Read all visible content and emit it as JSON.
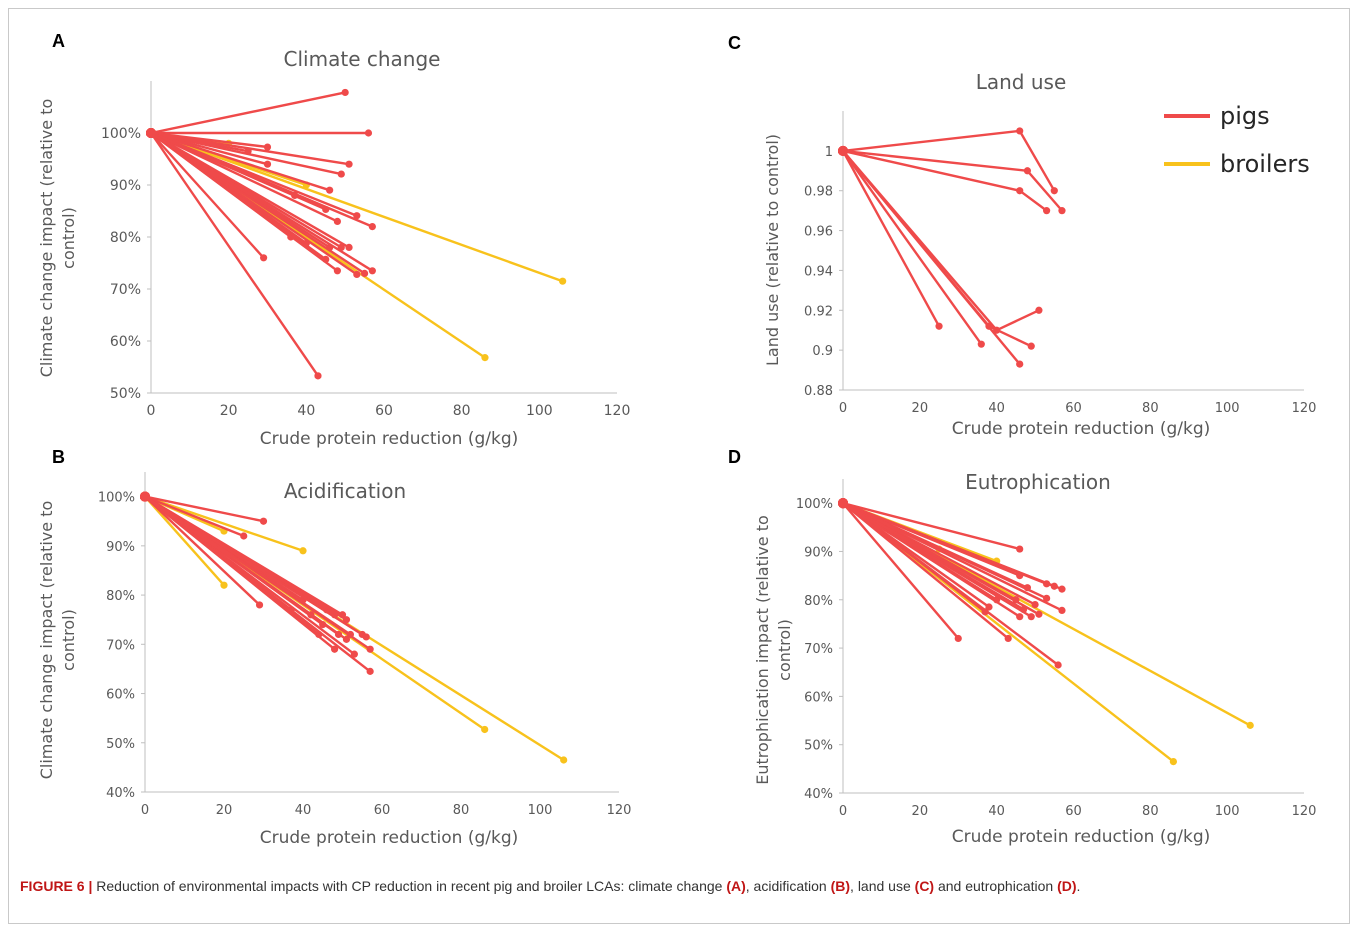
{
  "caption": {
    "label": "FIGURE 6 |",
    "text_parts": [
      "Reduction of environmental impacts with CP reduction in recent pig and broiler LCAs: climate change ",
      "(A)",
      ", acidification ",
      "(B)",
      ", land use ",
      "(C)",
      " and eutrophication ",
      "(D)",
      "."
    ]
  },
  "legend": {
    "items": [
      {
        "label": "pigs",
        "color": "#ef4a4a"
      },
      {
        "label": "broilers",
        "color": "#f8c21c"
      }
    ]
  },
  "chart_data": [
    {
      "panel": "A",
      "type": "line",
      "title": "Climate change",
      "xlabel": "Crude protein reduction (g/kg)",
      "ylabel": "Climate change impact (relative to control)",
      "xlim": [
        0,
        120
      ],
      "ylim": [
        0.5,
        1.1
      ],
      "x_ticks": [
        0,
        20,
        40,
        60,
        80,
        100,
        120
      ],
      "y_ticks": [
        0.5,
        0.6,
        0.7,
        0.8,
        0.9,
        1.0
      ],
      "y_tick_labels": [
        "50%",
        "60%",
        "70%",
        "80%",
        "90%",
        "100%"
      ],
      "grid": false,
      "series": [
        {
          "group": "pigs",
          "segments": [
            [
              [
                0,
                1.0
              ],
              [
                50,
                1.078
              ]
            ],
            [
              [
                0,
                1.0
              ],
              [
                56,
                1.0
              ]
            ],
            [
              [
                0,
                1.0
              ],
              [
                25,
                0.965
              ]
            ],
            [
              [
                0,
                1.0
              ],
              [
                30,
                0.973
              ]
            ],
            [
              [
                0,
                1.0
              ],
              [
                30,
                0.94
              ]
            ],
            [
              [
                0,
                1.0
              ],
              [
                51,
                0.94
              ]
            ],
            [
              [
                0,
                1.0
              ],
              [
                49,
                0.921
              ]
            ],
            [
              [
                0,
                1.0
              ],
              [
                46,
                0.89
              ]
            ],
            [
              [
                0,
                1.0
              ],
              [
                37,
                0.88
              ]
            ],
            [
              [
                0,
                1.0
              ],
              [
                45,
                0.853
              ]
            ],
            [
              [
                0,
                1.0
              ],
              [
                53,
                0.841
              ]
            ],
            [
              [
                0,
                1.0
              ],
              [
                48,
                0.83
              ]
            ],
            [
              [
                0,
                1.0
              ],
              [
                57,
                0.82
              ]
            ],
            [
              [
                0,
                1.0
              ],
              [
                36,
                0.8
              ]
            ],
            [
              [
                0,
                1.0
              ],
              [
                40,
                0.788
              ]
            ],
            [
              [
                0,
                1.0
              ],
              [
                46,
                0.78
              ]
            ],
            [
              [
                0,
                1.0
              ],
              [
                49,
                0.78
              ]
            ],
            [
              [
                0,
                1.0
              ],
              [
                51,
                0.78
              ]
            ],
            [
              [
                0,
                1.0
              ],
              [
                45,
                0.757
              ]
            ],
            [
              [
                0,
                1.0
              ],
              [
                29,
                0.76
              ]
            ],
            [
              [
                0,
                1.0
              ],
              [
                48,
                0.735
              ]
            ],
            [
              [
                0,
                1.0
              ],
              [
                53,
                0.728
              ]
            ],
            [
              [
                0,
                1.0
              ],
              [
                55,
                0.73
              ]
            ],
            [
              [
                0,
                1.0
              ],
              [
                57,
                0.735
              ]
            ],
            [
              [
                0,
                1.0
              ],
              [
                43,
                0.533
              ]
            ]
          ]
        },
        {
          "group": "broilers",
          "segments": [
            [
              [
                0,
                1.0
              ],
              [
                20,
                0.98
              ]
            ],
            [
              [
                0,
                1.0
              ],
              [
                40,
                0.9
              ]
            ],
            [
              [
                0,
                1.0
              ],
              [
                106,
                0.715
              ]
            ],
            [
              [
                0,
                1.0
              ],
              [
                86,
                0.568
              ]
            ]
          ]
        }
      ]
    },
    {
      "panel": "B",
      "type": "line",
      "title": "Acidification",
      "xlabel": "Crude protein reduction (g/kg)",
      "ylabel": "Climate change impact (relative to control)",
      "xlim": [
        0,
        120
      ],
      "ylim": [
        0.4,
        1.05
      ],
      "x_ticks": [
        0,
        20,
        40,
        60,
        80,
        100,
        120
      ],
      "y_ticks": [
        0.4,
        0.5,
        0.6,
        0.7,
        0.8,
        0.9,
        1.0
      ],
      "y_tick_labels": [
        "40%",
        "50%",
        "60%",
        "70%",
        "80%",
        "90%",
        "100%"
      ],
      "grid": false,
      "series": [
        {
          "group": "pigs",
          "segments": [
            [
              [
                0,
                1.0
              ],
              [
                30,
                0.95
              ]
            ],
            [
              [
                0,
                1.0
              ],
              [
                25,
                0.92
              ]
            ],
            [
              [
                0,
                1.0
              ],
              [
                29,
                0.78
              ]
            ],
            [
              [
                0,
                1.0
              ],
              [
                37,
                0.77
              ]
            ],
            [
              [
                0,
                1.0
              ],
              [
                40,
                0.79
              ]
            ],
            [
              [
                0,
                1.0
              ],
              [
                42,
                0.76
              ]
            ],
            [
              [
                0,
                1.0
              ],
              [
                45,
                0.74
              ]
            ],
            [
              [
                0,
                1.0
              ],
              [
                46,
                0.77
              ]
            ],
            [
              [
                0,
                1.0
              ],
              [
                48,
                0.76
              ]
            ],
            [
              [
                0,
                1.0
              ],
              [
                49,
                0.72
              ]
            ],
            [
              [
                0,
                1.0
              ],
              [
                50,
                0.76
              ]
            ],
            [
              [
                0,
                1.0
              ],
              [
                51,
                0.75
              ]
            ],
            [
              [
                0,
                1.0
              ],
              [
                52,
                0.72
              ]
            ],
            [
              [
                0,
                1.0
              ],
              [
                53,
                0.68
              ]
            ],
            [
              [
                0,
                1.0
              ],
              [
                55,
                0.72
              ]
            ],
            [
              [
                0,
                1.0
              ],
              [
                56,
                0.715
              ]
            ],
            [
              [
                0,
                1.0
              ],
              [
                57,
                0.69
              ]
            ],
            [
              [
                0,
                1.0
              ],
              [
                57,
                0.645
              ]
            ],
            [
              [
                0,
                1.0
              ],
              [
                48,
                0.69
              ]
            ],
            [
              [
                0,
                1.0
              ],
              [
                44,
                0.72
              ]
            ],
            [
              [
                0,
                1.0
              ],
              [
                51,
                0.71
              ]
            ]
          ]
        },
        {
          "group": "broilers",
          "segments": [
            [
              [
                0,
                1.0
              ],
              [
                20,
                0.93
              ]
            ],
            [
              [
                0,
                1.0
              ],
              [
                40,
                0.89
              ]
            ],
            [
              [
                0,
                1.0
              ],
              [
                20,
                0.82
              ]
            ],
            [
              [
                0,
                1.0
              ],
              [
                86,
                0.527
              ]
            ],
            [
              [
                0,
                1.0
              ],
              [
                106,
                0.465
              ]
            ]
          ]
        }
      ]
    },
    {
      "panel": "C",
      "type": "line",
      "title": "Land use",
      "xlabel": "Crude protein reduction (g/kg)",
      "ylabel": "Land use (relative to control)",
      "xlim": [
        0,
        120
      ],
      "ylim": [
        0.88,
        1.02
      ],
      "x_ticks": [
        0,
        20,
        40,
        60,
        80,
        100,
        120
      ],
      "y_ticks": [
        0.88,
        0.9,
        0.92,
        0.94,
        0.96,
        0.98,
        1.0
      ],
      "y_tick_labels": [
        "0.88",
        "0.9",
        "0.92",
        "0.94",
        "0.96",
        "0.98",
        "1"
      ],
      "grid": false,
      "series": [
        {
          "group": "pigs",
          "segments": [
            [
              [
                0,
                1.0
              ],
              [
                46,
                1.01
              ],
              [
                55,
                0.98
              ]
            ],
            [
              [
                0,
                1.0
              ],
              [
                48,
                0.99
              ],
              [
                57,
                0.97
              ]
            ],
            [
              [
                0,
                1.0
              ],
              [
                46,
                0.98
              ],
              [
                53,
                0.97
              ]
            ],
            [
              [
                0,
                1.0
              ],
              [
                25,
                0.912
              ]
            ],
            [
              [
                0,
                1.0
              ],
              [
                36,
                0.903
              ]
            ],
            [
              [
                0,
                1.0
              ],
              [
                38,
                0.912
              ],
              [
                49,
                0.902
              ]
            ],
            [
              [
                0,
                1.0
              ],
              [
                40,
                0.91
              ],
              [
                51,
                0.92
              ]
            ],
            [
              [
                0,
                1.0
              ],
              [
                46,
                0.893
              ]
            ]
          ]
        }
      ]
    },
    {
      "panel": "D",
      "type": "line",
      "title": "Eutrophication",
      "xlabel": "Crude protein reduction (g/kg)",
      "ylabel": "Eutrophication impact (relative to control)",
      "xlim": [
        0,
        120
      ],
      "ylim": [
        0.4,
        1.05
      ],
      "x_ticks": [
        0,
        20,
        40,
        60,
        80,
        100,
        120
      ],
      "y_ticks": [
        0.4,
        0.5,
        0.6,
        0.7,
        0.8,
        0.9,
        1.0
      ],
      "y_tick_labels": [
        "40%",
        "50%",
        "60%",
        "70%",
        "80%",
        "90%",
        "100%"
      ],
      "grid": false,
      "series": [
        {
          "group": "pigs",
          "segments": [
            [
              [
                0,
                1.0
              ],
              [
                46,
                0.905
              ]
            ],
            [
              [
                0,
                1.0
              ],
              [
                46,
                0.85
              ]
            ],
            [
              [
                0,
                1.0
              ],
              [
                48,
                0.825
              ]
            ],
            [
              [
                0,
                1.0
              ],
              [
                53,
                0.833
              ]
            ],
            [
              [
                0,
                1.0
              ],
              [
                55,
                0.828
              ]
            ],
            [
              [
                0,
                1.0
              ],
              [
                57,
                0.822
              ]
            ],
            [
              [
                0,
                1.0
              ],
              [
                53,
                0.803
              ]
            ],
            [
              [
                0,
                1.0
              ],
              [
                50,
                0.79
              ]
            ],
            [
              [
                0,
                1.0
              ],
              [
                57,
                0.778
              ]
            ],
            [
              [
                0,
                1.0
              ],
              [
                40,
                0.8
              ]
            ],
            [
              [
                0,
                1.0
              ],
              [
                45,
                0.8
              ]
            ],
            [
              [
                0,
                1.0
              ],
              [
                47,
                0.78
              ]
            ],
            [
              [
                0,
                1.0
              ],
              [
                49,
                0.765
              ]
            ],
            [
              [
                0,
                1.0
              ],
              [
                51,
                0.77
              ]
            ],
            [
              [
                0,
                1.0
              ],
              [
                38,
                0.785
              ]
            ],
            [
              [
                0,
                1.0
              ],
              [
                37,
                0.775
              ]
            ],
            [
              [
                0,
                1.0
              ],
              [
                43,
                0.72
              ]
            ],
            [
              [
                0,
                1.0
              ],
              [
                30,
                0.72
              ]
            ],
            [
              [
                0,
                1.0
              ],
              [
                56,
                0.665
              ]
            ],
            [
              [
                0,
                1.0
              ],
              [
                46,
                0.765
              ]
            ]
          ]
        },
        {
          "group": "broilers",
          "segments": [
            [
              [
                0,
                1.0
              ],
              [
                25,
                0.905
              ]
            ],
            [
              [
                0,
                1.0
              ],
              [
                40,
                0.88
              ]
            ],
            [
              [
                0,
                1.0
              ],
              [
                106,
                0.54
              ]
            ],
            [
              [
                0,
                1.0
              ],
              [
                86,
                0.465
              ]
            ]
          ]
        }
      ]
    }
  ]
}
